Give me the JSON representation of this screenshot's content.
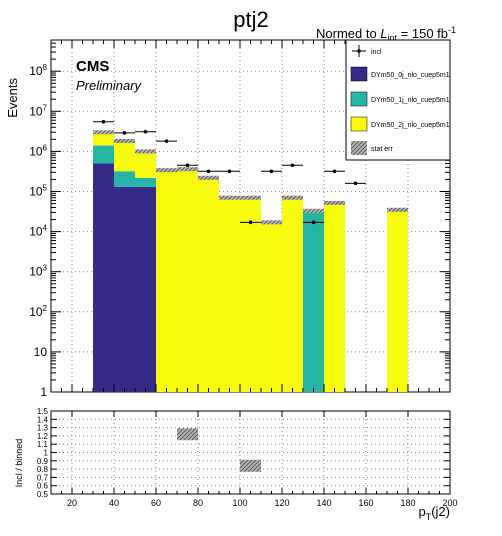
{
  "chart_data": [
    {
      "type": "bar",
      "title": "ptj2",
      "norm_label": {
        "prefix": "Normed to ",
        "L": "L",
        "sub": "int",
        "eq": " = 150 fb",
        "sup": "-1"
      },
      "experiment_label": "CMS",
      "status_label": "Preliminary",
      "ylabel": "Events",
      "xlabel": {
        "main": "p",
        "sub": "T",
        "rest": "(j2)"
      },
      "yscale": "log",
      "ylim": [
        1,
        600000000
      ],
      "xlim": [
        10,
        200
      ],
      "x_ticks": [
        20,
        40,
        60,
        80,
        100,
        120,
        140,
        160,
        180,
        200
      ],
      "y_ticks": [
        {
          "v": 1,
          "base": "1",
          "exp": ""
        },
        {
          "v": 10,
          "base": "10",
          "exp": ""
        },
        {
          "v": 100,
          "base": "10",
          "exp": "2"
        },
        {
          "v": 1000,
          "base": "10",
          "exp": "3"
        },
        {
          "v": 10000,
          "base": "10",
          "exp": "4"
        },
        {
          "v": 100000,
          "base": "10",
          "exp": "5"
        },
        {
          "v": 1000000,
          "base": "10",
          "exp": "6"
        },
        {
          "v": 10000000,
          "base": "10",
          "exp": "7"
        },
        {
          "v": 100000000,
          "base": "10",
          "exp": "8"
        }
      ],
      "bins": [
        [
          30,
          40
        ],
        [
          40,
          50
        ],
        [
          50,
          60
        ],
        [
          60,
          70
        ],
        [
          70,
          80
        ],
        [
          80,
          90
        ],
        [
          90,
          100
        ],
        [
          100,
          110
        ],
        [
          110,
          120
        ],
        [
          120,
          130
        ],
        [
          130,
          140
        ],
        [
          140,
          150
        ],
        [
          150,
          160
        ],
        [
          160,
          170
        ],
        [
          170,
          180
        ]
      ],
      "series": [
        {
          "name": "DYm50_0j_nlo_cuep5m1",
          "color": "#352a87",
          "values": [
            500000,
            130000,
            130000,
            0,
            0,
            0,
            0,
            0,
            0,
            0,
            0,
            0,
            0,
            0,
            0
          ]
        },
        {
          "name": "DYm50_1j_nlo_cuep5m1",
          "color": "#26b5a5",
          "values": [
            900000,
            190000,
            90000,
            0,
            0,
            0,
            0,
            0,
            0,
            0,
            33000,
            0,
            0,
            0,
            0
          ]
        },
        {
          "name": "DYm50_2j_nlo_cuep5m1",
          "color": "#f9fb0e",
          "values": [
            1600000,
            1500000,
            780000,
            340000,
            360000,
            220000,
            70000,
            70000,
            17000,
            70000,
            0,
            52000,
            0,
            0,
            35000
          ]
        }
      ],
      "incl": {
        "name": "incl",
        "x": [
          35,
          45,
          55,
          65,
          75,
          85,
          95,
          105,
          115,
          125,
          135,
          145,
          155
        ],
        "y": [
          5500000,
          2900000,
          3100000,
          1800000,
          450000,
          320000,
          320000,
          17000,
          320000,
          450000,
          17000,
          320000,
          160000
        ],
        "xerr": 5
      },
      "stat_err_label": "stat err"
    },
    {
      "type": "scatter",
      "ylabel": "Incl / binned",
      "ylim": [
        0.5,
        1.5
      ],
      "y_ticks": [
        "0.5",
        "0.6",
        "0.7",
        "0.8",
        "0.9",
        "1",
        "1.1",
        "1.2",
        "1.3",
        "1.4",
        "1.5"
      ],
      "x_ticks": [
        20,
        40,
        60,
        80,
        100,
        120,
        140,
        160,
        180,
        200
      ],
      "points": [
        {
          "x": 75,
          "y": 1.22
        },
        {
          "x": 105,
          "y": 0.84
        }
      ]
    }
  ]
}
